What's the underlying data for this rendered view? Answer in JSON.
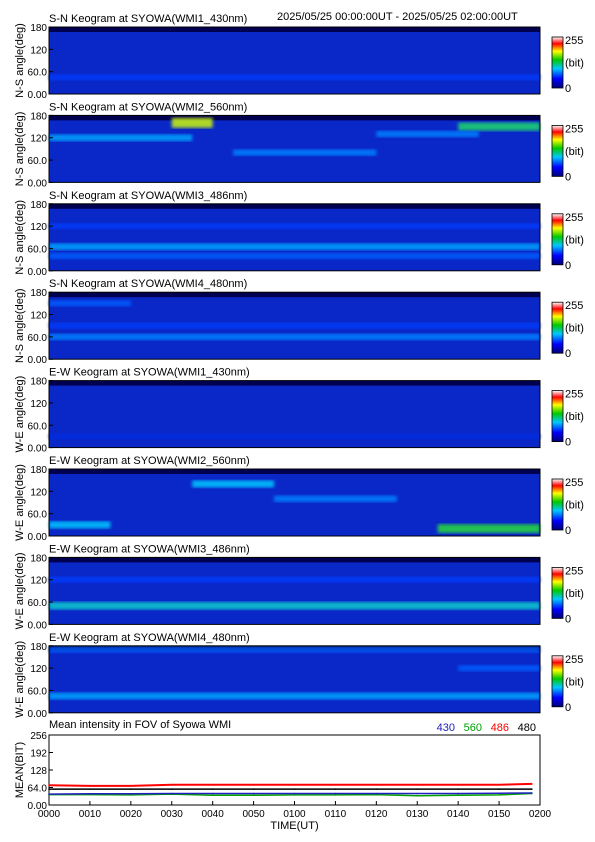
{
  "header": {
    "time_range": "2025/05/25 00:00:00UT - 2025/05/25 02:00:00UT"
  },
  "chart_data": [
    {
      "type": "heatmap",
      "title": "S-N Keogram at SYOWA(WMI1_430nm)",
      "ylabel": "N-S angle(deg)",
      "yticks": [
        "180",
        "120",
        "60.0",
        "0.00"
      ],
      "ylim": [
        0,
        180
      ],
      "xlim": [
        "00:00",
        "02:00"
      ],
      "colorbar": {
        "min": "0",
        "max": "255",
        "unit": "(bit)"
      },
      "features": [
        {
          "x": [
            "00:00",
            "02:00"
          ],
          "y": 45,
          "level": 0.2
        }
      ]
    },
    {
      "type": "heatmap",
      "title": "S-N Keogram at SYOWA(WMI2_560nm)",
      "ylabel": "N-S angle(deg)",
      "yticks": [
        "180",
        "120",
        "60.0",
        "0.00"
      ],
      "ylim": [
        0,
        180
      ],
      "xlim": [
        "00:00",
        "02:00"
      ],
      "colorbar": {
        "min": "0",
        "max": "255",
        "unit": "(bit)"
      },
      "features": [
        {
          "x": [
            "00:30",
            "00:40"
          ],
          "y": 160,
          "level": 0.75
        },
        {
          "x": [
            "01:40",
            "02:00"
          ],
          "y": 150,
          "level": 0.55
        },
        {
          "x": [
            "00:00",
            "00:35"
          ],
          "y": 120,
          "level": 0.35
        },
        {
          "x": [
            "00:45",
            "01:20"
          ],
          "y": 80,
          "level": 0.3
        },
        {
          "x": [
            "01:20",
            "01:45"
          ],
          "y": 130,
          "level": 0.3
        }
      ]
    },
    {
      "type": "heatmap",
      "title": "S-N Keogram at SYOWA(WMI3_486nm)",
      "ylabel": "N-S angle(deg)",
      "yticks": [
        "180",
        "120",
        "60.0",
        "0.00"
      ],
      "ylim": [
        0,
        180
      ],
      "xlim": [
        "00:00",
        "02:00"
      ],
      "colorbar": {
        "min": "0",
        "max": "255",
        "unit": "(bit)"
      },
      "features": [
        {
          "x": [
            "00:00",
            "02:00"
          ],
          "y": 65,
          "level": 0.35
        },
        {
          "x": [
            "00:00",
            "02:00"
          ],
          "y": 40,
          "level": 0.25
        },
        {
          "x": [
            "00:00",
            "02:00"
          ],
          "y": 120,
          "level": 0.2
        }
      ]
    },
    {
      "type": "heatmap",
      "title": "S-N Keogram at SYOWA(WMI4_480nm)",
      "ylabel": "N-S angle(deg)",
      "yticks": [
        "180",
        "120",
        "60.0",
        "0.00"
      ],
      "ylim": [
        0,
        180
      ],
      "xlim": [
        "00:00",
        "02:00"
      ],
      "colorbar": {
        "min": "0",
        "max": "255",
        "unit": "(bit)"
      },
      "features": [
        {
          "x": [
            "00:00",
            "02:00"
          ],
          "y": 60,
          "level": 0.3
        },
        {
          "x": [
            "00:00",
            "00:20"
          ],
          "y": 150,
          "level": 0.25
        },
        {
          "x": [
            "00:00",
            "02:00"
          ],
          "y": 90,
          "level": 0.2
        }
      ]
    },
    {
      "type": "heatmap",
      "title": "E-W Keogram at SYOWA(WMI1_430nm)",
      "ylabel": "W-E angle(deg)",
      "yticks": [
        "180",
        "120",
        "60.0",
        "0.00"
      ],
      "ylim": [
        0,
        180
      ],
      "xlim": [
        "00:00",
        "02:00"
      ],
      "colorbar": {
        "min": "0",
        "max": "255",
        "unit": "(bit)"
      },
      "features": [
        {
          "x": [
            "00:00",
            "02:00"
          ],
          "y": 30,
          "level": 0.15
        }
      ]
    },
    {
      "type": "heatmap",
      "title": "E-W Keogram at SYOWA(WMI2_560nm)",
      "ylabel": "W-E angle(deg)",
      "yticks": [
        "180",
        "120",
        "60.0",
        "0.00"
      ],
      "ylim": [
        0,
        180
      ],
      "xlim": [
        "00:00",
        "02:00"
      ],
      "colorbar": {
        "min": "0",
        "max": "255",
        "unit": "(bit)"
      },
      "features": [
        {
          "x": [
            "00:00",
            "00:15"
          ],
          "y": 30,
          "level": 0.4
        },
        {
          "x": [
            "00:35",
            "00:55"
          ],
          "y": 140,
          "level": 0.4
        },
        {
          "x": [
            "00:55",
            "01:25"
          ],
          "y": 100,
          "level": 0.3
        },
        {
          "x": [
            "01:35",
            "02:00"
          ],
          "y": 20,
          "level": 0.6
        }
      ]
    },
    {
      "type": "heatmap",
      "title": "E-W Keogram at SYOWA(WMI3_486nm)",
      "ylabel": "W-E angle(deg)",
      "yticks": [
        "180",
        "120",
        "60.0",
        "0.00"
      ],
      "ylim": [
        0,
        180
      ],
      "xlim": [
        "00:00",
        "02:00"
      ],
      "colorbar": {
        "min": "0",
        "max": "255",
        "unit": "(bit)"
      },
      "features": [
        {
          "x": [
            "00:00",
            "02:00"
          ],
          "y": 50,
          "level": 0.45
        },
        {
          "x": [
            "00:00",
            "02:00"
          ],
          "y": 120,
          "level": 0.2
        }
      ]
    },
    {
      "type": "heatmap",
      "title": "E-W Keogram at SYOWA(WMI4_480nm)",
      "ylabel": "W-E angle(deg)",
      "yticks": [
        "180",
        "120",
        "60.0",
        "0.00"
      ],
      "ylim": [
        0,
        180
      ],
      "xlim": [
        "00:00",
        "02:00"
      ],
      "colorbar": {
        "min": "0",
        "max": "255",
        "unit": "(bit)"
      },
      "features": [
        {
          "x": [
            "00:00",
            "02:00"
          ],
          "y": 45,
          "level": 0.35
        },
        {
          "x": [
            "00:00",
            "02:00"
          ],
          "y": 170,
          "level": 0.25
        },
        {
          "x": [
            "01:40",
            "02:00"
          ],
          "y": 120,
          "level": 0.25
        }
      ]
    },
    {
      "type": "line",
      "title": "Mean intensity in FOV of Syowa WMI",
      "ylabel": "MEAN(BIT)",
      "xlabel": "TIME(UT)",
      "yticks": [
        "256",
        "192",
        "128",
        "64.0",
        "0.00"
      ],
      "ylim": [
        0,
        256
      ],
      "xticks": [
        "0000",
        "0010",
        "0020",
        "0030",
        "0040",
        "0050",
        "0100",
        "0110",
        "0120",
        "0130",
        "0140",
        "0150",
        "0200"
      ],
      "x": [
        "00:00",
        "00:10",
        "00:20",
        "00:30",
        "00:40",
        "00:50",
        "01:00",
        "01:10",
        "01:20",
        "01:30",
        "01:40",
        "01:50",
        "01:58"
      ],
      "series": [
        {
          "name": "430",
          "color": "#2020c0",
          "values": [
            40,
            41,
            41,
            42,
            42,
            42,
            42,
            42,
            42,
            42,
            42,
            43,
            44
          ]
        },
        {
          "name": "560",
          "color": "#00a000",
          "values": [
            38,
            38,
            37,
            40,
            36,
            36,
            37,
            37,
            38,
            34,
            36,
            37,
            42
          ]
        },
        {
          "name": "486",
          "color": "#ff0000",
          "values": [
            72,
            70,
            70,
            74,
            74,
            74,
            74,
            74,
            74,
            74,
            74,
            74,
            77
          ]
        },
        {
          "name": "480",
          "color": "#000000",
          "values": [
            58,
            58,
            58,
            58,
            58,
            58,
            58,
            58,
            58,
            58,
            58,
            58,
            58
          ]
        }
      ]
    }
  ]
}
